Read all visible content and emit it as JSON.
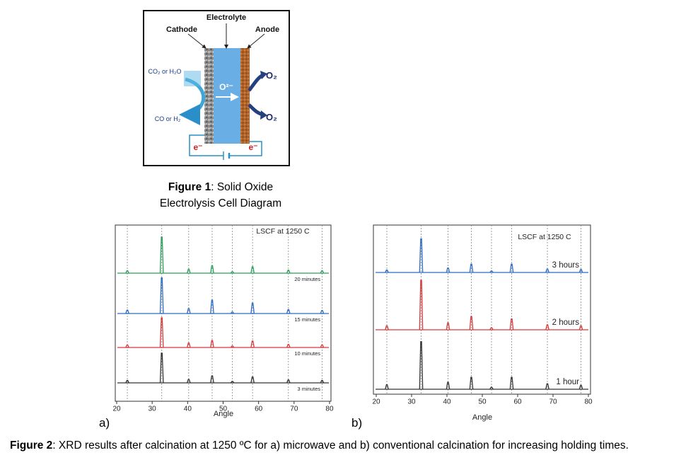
{
  "figure1": {
    "diagram": {
      "electrolyte": "Electrolyte",
      "cathode": "Cathode",
      "anode": "Anode",
      "input_gas": "CO₂ or H₂O",
      "output_gas": "CO or H₂",
      "ion": "O²⁻",
      "oxygen_top": "O₂",
      "oxygen_bottom": "O₂",
      "electron_left": "e⁻",
      "electron_right": "e⁻"
    },
    "caption": {
      "label": "Figure 1",
      "text_lines": [
        ": Solid Oxide",
        "Electrolysis Cell Diagram"
      ]
    }
  },
  "chart_data": [
    {
      "type": "line",
      "panel_label": "a)",
      "title": "LSCF at 1250 C",
      "xlabel": "Angle",
      "x": [
        23,
        32.7,
        40.3,
        46.9,
        52.6,
        58.3,
        68.4,
        77.9
      ],
      "xlim": [
        19.6,
        80.4
      ],
      "xticks": [
        20,
        30,
        40,
        50,
        60,
        70,
        80
      ],
      "ylim": [
        0,
        100
      ],
      "grid": true,
      "series": [
        {
          "name": "3 minutes",
          "color": "#333333",
          "values": [
            5,
            60,
            7,
            14,
            3,
            12,
            6,
            5
          ]
        },
        {
          "name": "10 minutes",
          "color": "#d9383a",
          "values": [
            5,
            60,
            9,
            14,
            3,
            13,
            6,
            5
          ]
        },
        {
          "name": "15 minutes",
          "color": "#2c6cc4",
          "values": [
            7,
            72,
            10,
            27,
            3,
            21,
            8,
            6
          ]
        },
        {
          "name": "20 minutes",
          "color": "#2aa05a",
          "values": [
            5,
            73,
            8,
            15,
            3,
            13,
            6,
            5
          ]
        }
      ]
    },
    {
      "type": "line",
      "panel_label": "b)",
      "title": "LSCF at 1250 C",
      "xlabel": "Angle",
      "x": [
        23,
        32.7,
        40.3,
        46.9,
        52.6,
        58.3,
        68.4,
        77.9
      ],
      "xlim": [
        19.2,
        80.6
      ],
      "xticks": [
        20,
        30,
        40,
        50,
        60,
        70,
        80
      ],
      "ylim": [
        0,
        100
      ],
      "grid": true,
      "series": [
        {
          "name": "1 hour",
          "color": "#333333",
          "values": [
            9,
            96,
            14,
            24,
            4,
            24,
            11,
            8
          ]
        },
        {
          "name": "2 hours",
          "color": "#d9383a",
          "values": [
            8,
            100,
            14,
            27,
            4,
            22,
            10,
            8
          ]
        },
        {
          "name": "3 hours",
          "color": "#2c6cc4",
          "values": [
            5,
            68,
            9,
            17,
            3,
            17,
            7,
            6
          ]
        }
      ]
    }
  ],
  "figure2": {
    "caption": {
      "label": "Figure 2",
      "text": ": XRD results after calcination at 1250 ºC for a) microwave and b) conventional calcination for increasing holding times."
    }
  }
}
